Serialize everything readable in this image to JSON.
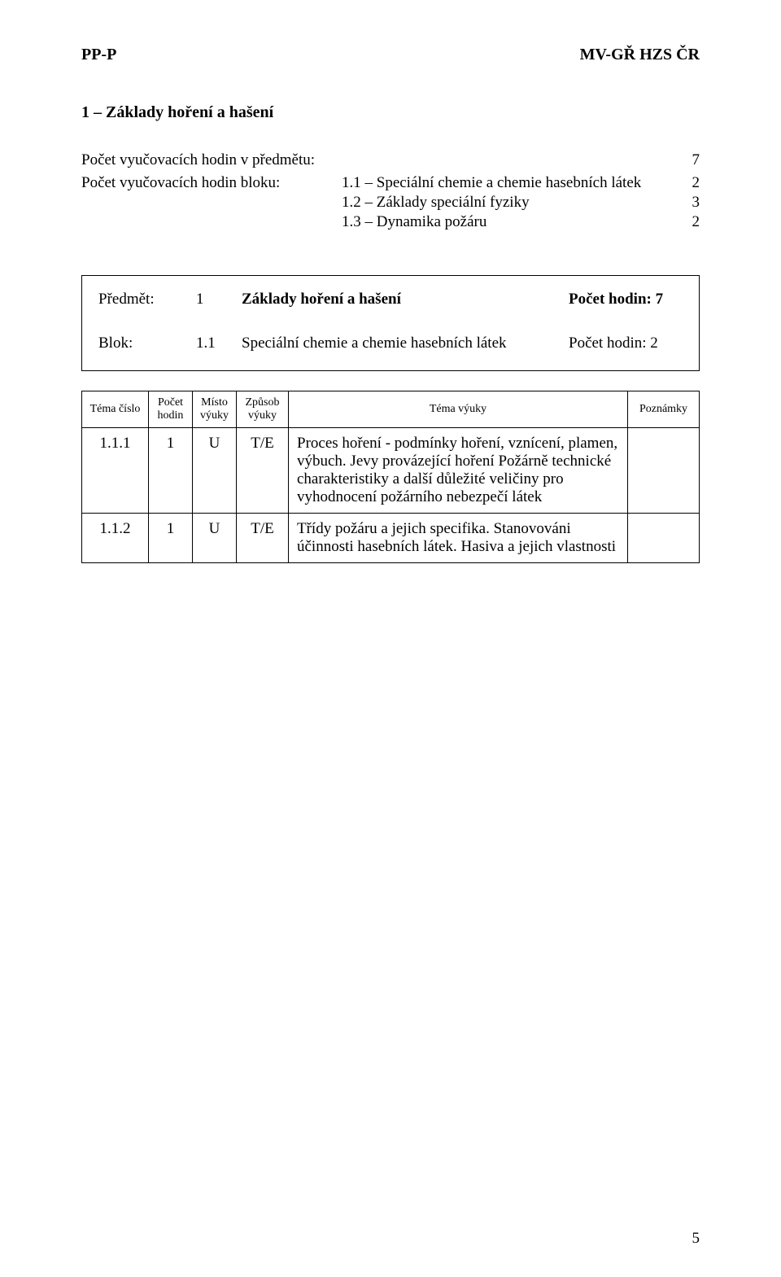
{
  "header": {
    "left": "PP-P",
    "right": "MV-GŘ HZS ČR"
  },
  "section_title": "1 – Základy hoření a hašení",
  "hours_summary": {
    "total_label": "Počet vyučovacích hodin v předmětu:",
    "total_value": "7",
    "block_label": "Počet vyučovacích hodin bloku:",
    "subs": [
      {
        "text": "1.1 – Speciální chemie a chemie hasebních látek",
        "value": "2"
      },
      {
        "text": "1.2 – Základy speciální fyziky",
        "value": "3"
      },
      {
        "text": "1.3 – Dynamika požáru",
        "value": "2"
      }
    ]
  },
  "box": {
    "row1": {
      "left": "Předmět:",
      "num": "1",
      "mid": "Základy hoření a hašení",
      "right": "Počet hodin: 7"
    },
    "row2": {
      "left": "Blok:",
      "num": "1.1",
      "mid": "Speciální chemie a chemie hasebních látek",
      "right": "Počet hodin: 2"
    }
  },
  "table": {
    "headers": {
      "c0": "Téma číslo",
      "c1": "Počet hodin",
      "c2": "Místo výuky",
      "c3": "Způsob výuky",
      "c4": "Téma výuky",
      "c5": "Poznámky"
    },
    "rows": [
      {
        "num": "1.1.1",
        "hours": "1",
        "place": "U",
        "method": "T/E",
        "topic": "Proces hoření - podmínky hoření, vznícení, plamen, výbuch. Jevy provázející hoření\nPožárně technické charakteristiky a další důležité veličiny pro vyhodnocení požárního nebezpečí látek",
        "notes": ""
      },
      {
        "num": "1.1.2",
        "hours": "1",
        "place": "U",
        "method": "T/E",
        "topic": "Třídy požáru a jejich specifika. Stanovováni účinnosti hasebních látek. Hasiva a jejich vlastnosti",
        "notes": ""
      }
    ]
  },
  "page_number": "5"
}
